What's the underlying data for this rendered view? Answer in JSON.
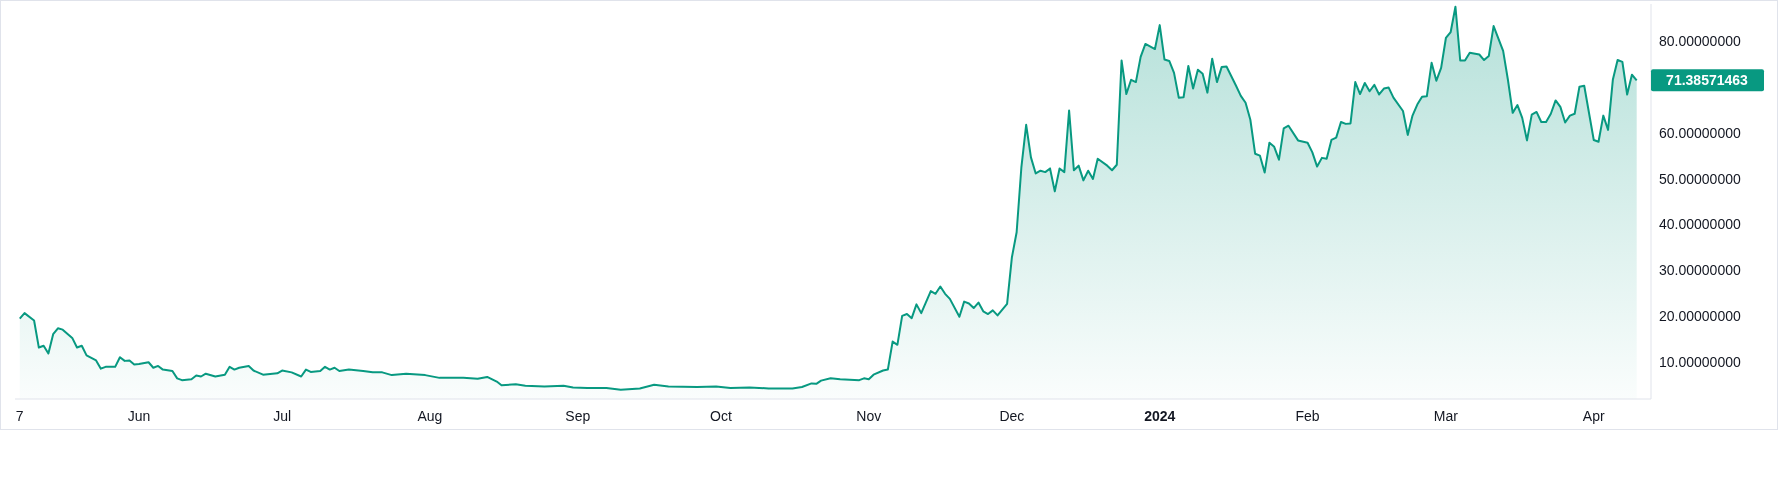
{
  "chart_data": {
    "type": "area",
    "color": "#089981",
    "x": [
      "2023-05-07",
      "2023-05-08",
      "2023-05-10",
      "2023-05-11",
      "2023-05-12",
      "2023-05-13",
      "2023-05-14",
      "2023-05-15",
      "2023-05-16",
      "2023-05-18",
      "2023-05-19",
      "2023-05-20",
      "2023-05-21",
      "2023-05-23",
      "2023-05-24",
      "2023-05-25",
      "2023-05-27",
      "2023-05-28",
      "2023-05-29",
      "2023-05-30",
      "2023-05-31",
      "2023-06-01",
      "2023-06-03",
      "2023-06-04",
      "2023-06-05",
      "2023-06-06",
      "2023-06-08",
      "2023-06-09",
      "2023-06-10",
      "2023-06-12",
      "2023-06-13",
      "2023-06-14",
      "2023-06-15",
      "2023-06-17",
      "2023-06-19",
      "2023-06-20",
      "2023-06-21",
      "2023-06-22",
      "2023-06-24",
      "2023-06-25",
      "2023-06-27",
      "2023-06-30",
      "2023-07-01",
      "2023-07-03",
      "2023-07-05",
      "2023-07-06",
      "2023-07-07",
      "2023-07-09",
      "2023-07-10",
      "2023-07-11",
      "2023-07-12",
      "2023-07-13",
      "2023-07-15",
      "2023-07-18",
      "2023-07-20",
      "2023-07-22",
      "2023-07-24",
      "2023-07-27",
      "2023-07-31",
      "2023-08-03",
      "2023-08-08",
      "2023-08-11",
      "2023-08-13",
      "2023-08-15",
      "2023-08-16",
      "2023-08-19",
      "2023-08-21",
      "2023-08-25",
      "2023-08-29",
      "2023-08-31",
      "2023-09-03",
      "2023-09-07",
      "2023-09-10",
      "2023-09-14",
      "2023-09-17",
      "2023-09-20",
      "2023-09-26",
      "2023-09-30",
      "2023-10-03",
      "2023-10-07",
      "2023-10-11",
      "2023-10-16",
      "2023-10-18",
      "2023-10-20",
      "2023-10-21",
      "2023-10-22",
      "2023-10-24",
      "2023-10-26",
      "2023-10-30",
      "2023-10-31",
      "2023-11-01",
      "2023-11-02",
      "2023-11-04",
      "2023-11-05",
      "2023-11-06",
      "2023-11-07",
      "2023-11-08",
      "2023-11-09",
      "2023-11-10",
      "2023-11-11",
      "2023-11-12",
      "2023-11-14",
      "2023-11-15",
      "2023-11-16",
      "2023-11-17",
      "2023-11-18",
      "2023-11-20",
      "2023-11-21",
      "2023-11-22",
      "2023-11-23",
      "2023-11-24",
      "2023-11-25",
      "2023-11-26",
      "2023-11-27",
      "2023-11-28",
      "2023-11-30",
      "2023-12-01",
      "2023-12-02",
      "2023-12-03",
      "2023-12-04",
      "2023-12-05",
      "2023-12-06",
      "2023-12-07",
      "2023-12-08",
      "2023-12-09",
      "2023-12-10",
      "2023-12-11",
      "2023-12-12",
      "2023-12-13",
      "2023-12-14",
      "2023-12-15",
      "2023-12-16",
      "2023-12-17",
      "2023-12-18",
      "2023-12-19",
      "2023-12-21",
      "2023-12-22",
      "2023-12-23",
      "2023-12-24",
      "2023-12-25",
      "2023-12-26",
      "2023-12-27",
      "2023-12-28",
      "2023-12-29",
      "2023-12-31",
      "2024-01-01",
      "2024-01-02",
      "2024-01-03",
      "2024-01-04",
      "2024-01-05",
      "2024-01-06",
      "2024-01-07",
      "2024-01-08",
      "2024-01-09",
      "2024-01-10",
      "2024-01-11",
      "2024-01-12",
      "2024-01-13",
      "2024-01-14",
      "2024-01-15",
      "2024-01-17",
      "2024-01-18",
      "2024-01-19",
      "2024-01-20",
      "2024-01-21",
      "2024-01-22",
      "2024-01-23",
      "2024-01-24",
      "2024-01-25",
      "2024-01-26",
      "2024-01-27",
      "2024-01-28",
      "2024-01-30",
      "2024-02-01",
      "2024-02-02",
      "2024-02-03",
      "2024-02-04",
      "2024-02-05",
      "2024-02-06",
      "2024-02-07",
      "2024-02-08",
      "2024-02-09",
      "2024-02-10",
      "2024-02-11",
      "2024-02-12",
      "2024-02-13",
      "2024-02-14",
      "2024-02-15",
      "2024-02-16",
      "2024-02-17",
      "2024-02-18",
      "2024-02-19",
      "2024-02-21",
      "2024-02-22",
      "2024-02-23",
      "2024-02-24",
      "2024-02-25",
      "2024-02-26",
      "2024-02-27",
      "2024-02-28",
      "2024-02-29",
      "2024-03-01",
      "2024-03-02",
      "2024-03-03",
      "2024-03-04",
      "2024-03-05",
      "2024-03-06",
      "2024-03-08",
      "2024-03-09",
      "2024-03-10",
      "2024-03-11",
      "2024-03-13",
      "2024-03-14",
      "2024-03-15",
      "2024-03-16",
      "2024-03-17",
      "2024-03-18",
      "2024-03-19",
      "2024-03-20",
      "2024-03-21",
      "2024-03-22",
      "2024-03-23",
      "2024-03-24",
      "2024-03-25",
      "2024-03-26",
      "2024-03-27",
      "2024-03-28",
      "2024-03-29",
      "2024-03-30",
      "2024-04-01",
      "2024-04-02",
      "2024-04-03",
      "2024-04-04",
      "2024-04-05",
      "2024-04-06",
      "2024-04-07",
      "2024-04-08",
      "2024-04-09",
      "2024-04-10"
    ],
    "values": [
      19.5,
      20.7,
      19.1,
      13.2,
      13.6,
      11.9,
      16.1,
      17.4,
      17.1,
      15.3,
      13.2,
      13.6,
      11.5,
      10.4,
      8.6,
      9.0,
      9.0,
      11.1,
      10.3,
      10.4,
      9.5,
      9.6,
      10.0,
      8.8,
      9.2,
      8.4,
      8.1,
      6.5,
      6.1,
      6.3,
      7.1,
      6.9,
      7.5,
      6.9,
      7.3,
      9.0,
      8.4,
      8.8,
      9.2,
      8.2,
      7.3,
      7.6,
      8.2,
      7.8,
      6.9,
      8.4,
      7.9,
      8.1,
      9.0,
      8.4,
      8.8,
      8.1,
      8.4,
      8.1,
      7.8,
      7.8,
      7.2,
      7.5,
      7.2,
      6.6,
      6.6,
      6.4,
      6.8,
      5.8,
      5.0,
      5.2,
      4.9,
      4.7,
      4.9,
      4.5,
      4.4,
      4.4,
      4.0,
      4.3,
      5.1,
      4.7,
      4.6,
      4.7,
      4.4,
      4.5,
      4.3,
      4.3,
      4.6,
      5.4,
      5.3,
      6.0,
      6.5,
      6.3,
      6.1,
      6.5,
      6.3,
      7.3,
      8.2,
      8.4,
      14.5,
      13.8,
      20.1,
      20.5,
      19.6,
      22.6,
      20.7,
      25.5,
      24.9,
      26.5,
      24.9,
      23.8,
      19.9,
      23.2,
      22.8,
      21.8,
      23.0,
      21.1,
      20.5,
      21.3,
      20.2,
      22.7,
      32.8,
      38.3,
      52.5,
      61.7,
      54.6,
      51.1,
      51.7,
      51.4,
      52.2,
      47.2,
      52.2,
      51.4,
      64.8,
      51.8,
      52.8,
      49.6,
      51.7,
      49.9,
      54.3,
      52.8,
      51.8,
      53.0,
      75.7,
      68.4,
      71.5,
      71.0,
      76.5,
      79.3,
      78.2,
      83.4,
      75.9,
      75.6,
      73.0,
      67.6,
      67.7,
      74.5,
      69.6,
      73.7,
      72.8,
      68.7,
      76.1,
      71.0,
      74.3,
      74.4,
      70.2,
      68.0,
      66.5,
      62.8,
      55.4,
      55.0,
      51.3,
      57.8,
      56.9,
      54.1,
      60.9,
      61.5,
      58.3,
      57.8,
      55.7,
      52.6,
      54.5,
      54.3,
      58.4,
      58.9,
      62.3,
      61.9,
      62.0,
      71.0,
      68.4,
      70.8,
      69.0,
      70.4,
      68.3,
      69.6,
      69.8,
      67.6,
      64.7,
      59.5,
      63.7,
      66.1,
      67.8,
      67.9,
      75.2,
      71.3,
      74.1,
      80.6,
      81.9,
      87.4,
      75.7,
      75.7,
      77.4,
      77.0,
      75.8,
      76.7,
      83.2,
      77.8,
      71.5,
      64.3,
      66.0,
      63.2,
      58.3,
      63.9,
      64.5,
      62.3,
      62.3,
      64.1,
      67.0,
      65.6,
      62.2,
      63.7,
      64.1,
      70.0,
      70.2,
      58.4,
      58.0,
      63.7,
      60.6,
      71.5,
      75.8,
      75.4,
      68.3,
      72.6,
      71.38571463
    ],
    "xlim": [
      "2023-05-06",
      "2024-04-13"
    ],
    "xticks": [
      {
        "value": "2023-05-07",
        "label": "7"
      },
      {
        "value": "2023-06-01",
        "label": "Jun"
      },
      {
        "value": "2023-07-01",
        "label": "Jul"
      },
      {
        "value": "2023-08-01",
        "label": "Aug"
      },
      {
        "value": "2023-09-01",
        "label": "Sep"
      },
      {
        "value": "2023-10-01",
        "label": "Oct"
      },
      {
        "value": "2023-11-01",
        "label": "Nov"
      },
      {
        "value": "2023-12-01",
        "label": "Dec"
      },
      {
        "value": "2024-01-01",
        "label": "2024"
      },
      {
        "value": "2024-02-01",
        "label": "Feb"
      },
      {
        "value": "2024-03-01",
        "label": "Mar"
      },
      {
        "value": "2024-04-01",
        "label": "Apr"
      }
    ],
    "ylim": [
      2,
      88
    ],
    "yticks": [
      {
        "value": 10,
        "label": "10.00000000"
      },
      {
        "value": 20,
        "label": "20.00000000"
      },
      {
        "value": 30,
        "label": "30.00000000"
      },
      {
        "value": 40,
        "label": "40.00000000"
      },
      {
        "value": 50,
        "label": "50.00000000"
      },
      {
        "value": 60,
        "label": "60.00000000"
      },
      {
        "value": 80,
        "label": "80.00000000"
      }
    ],
    "annotations": [
      {
        "text": "71.38571463",
        "x": "2024-04-10",
        "y": 71.38571463
      }
    ]
  }
}
